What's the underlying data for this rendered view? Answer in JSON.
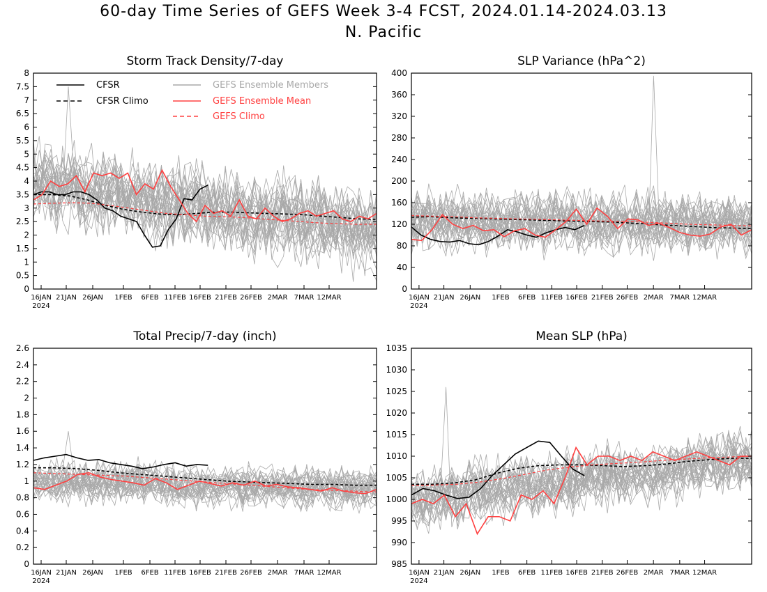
{
  "page": {
    "title": "60-day Time Series of GEFS Week 3-4 FCST, 2024.01.14-2024.03.13",
    "subtitle": "N. Pacific"
  },
  "colors": {
    "cfsr": "#000000",
    "members": "#a9a9a9",
    "ens_mean": "#ff4040",
    "gefs_climo": "#ff4040"
  },
  "legend": {
    "placement": "top-left",
    "entries": [
      "CFSR",
      "CFSR Climo",
      "GEFS Ensemble Members",
      "GEFS Ensemble Mean",
      "GEFS Climo"
    ]
  },
  "x_axis": {
    "ticks": [
      "16JAN",
      "21JAN",
      "26JAN",
      "1FEB",
      "6FEB",
      "11FEB",
      "16FEB",
      "21FEB",
      "26FEB",
      "2MAR",
      "7MAR",
      "12MAR"
    ],
    "year_label": "2024"
  },
  "chart_data": [
    {
      "type": "line",
      "title": "Storm Track Density/7-day",
      "ylim": [
        0,
        8
      ],
      "yticks": [
        "0",
        "0.5",
        "1",
        "1.5",
        "2",
        "2.5",
        "3",
        "3.5",
        "4",
        "4.5",
        "5",
        "5.5",
        "6",
        "6.5",
        "7",
        "7.5",
        "8"
      ],
      "legend": true,
      "members": {
        "center": [
          3.9,
          2.1
        ],
        "spread": 1.1,
        "peak": 7.5
      },
      "series": [
        {
          "role": "cfsr",
          "name": "CFSR",
          "values": [
            3.5,
            3.6,
            3.6,
            3.5,
            3.5,
            3.6,
            3.6,
            3.5,
            3.3,
            3.0,
            2.9,
            2.7,
            2.6,
            2.5,
            2.0,
            1.55,
            1.6,
            2.2,
            2.6,
            3.35,
            3.3,
            3.7,
            3.85
          ]
        },
        {
          "role": "cfsr_climo",
          "name": "CFSR Climo",
          "values": [
            3.5,
            3.5,
            3.45,
            3.3,
            3.1,
            2.95,
            2.85,
            2.78,
            2.75,
            2.8,
            2.85,
            2.85,
            2.82,
            2.8,
            2.78,
            2.75,
            2.7,
            2.65,
            2.6,
            2.58
          ]
        },
        {
          "role": "ens_mean",
          "name": "GEFS Ensemble Mean",
          "values": [
            3.3,
            3.5,
            4.0,
            3.8,
            3.9,
            4.2,
            3.6,
            4.3,
            4.2,
            4.3,
            4.1,
            4.3,
            3.5,
            3.9,
            3.7,
            4.4,
            3.8,
            3.3,
            2.8,
            2.5,
            3.1,
            2.8,
            2.9,
            2.7,
            3.3,
            2.7,
            2.6,
            3.0,
            2.7,
            2.5,
            2.6,
            2.8,
            2.9,
            2.7,
            2.8,
            2.9,
            2.6,
            2.5,
            2.7,
            2.6,
            2.8
          ]
        },
        {
          "role": "gefs_climo",
          "name": "GEFS Climo",
          "values": [
            3.15,
            3.18,
            3.2,
            3.18,
            3.1,
            3.0,
            2.9,
            2.8,
            2.75,
            2.7,
            2.68,
            2.65,
            2.6,
            2.55,
            2.5,
            2.45,
            2.42,
            2.4,
            2.4
          ]
        }
      ]
    },
    {
      "type": "line",
      "title": "SLP Variance (hPa^2)",
      "ylim": [
        0,
        400
      ],
      "yticks": [
        "0",
        "40",
        "80",
        "120",
        "160",
        "200",
        "240",
        "280",
        "320",
        "360",
        "400"
      ],
      "legend": false,
      "members": {
        "center": [
          125,
          120
        ],
        "spread": 40,
        "peak": 395
      },
      "series": [
        {
          "role": "cfsr",
          "name": "CFSR",
          "values": [
            115,
            100,
            92,
            88,
            87,
            90,
            84,
            82,
            88,
            98,
            110,
            106,
            100,
            96,
            104,
            110,
            114,
            110,
            118
          ]
        },
        {
          "role": "cfsr_climo",
          "name": "CFSR Climo",
          "values": [
            133,
            134,
            132,
            131,
            130,
            129,
            128,
            127,
            126,
            125,
            124,
            122,
            120,
            118,
            116,
            114,
            113,
            112
          ]
        },
        {
          "role": "ens_mean",
          "name": "GEFS Ensemble Mean",
          "values": [
            92,
            90,
            110,
            138,
            120,
            112,
            118,
            108,
            110,
            97,
            108,
            112,
            100,
            96,
            110,
            125,
            148,
            120,
            150,
            135,
            112,
            130,
            128,
            118,
            122,
            114,
            105,
            100,
            98,
            102,
            115,
            120,
            100,
            110
          ]
        },
        {
          "role": "gefs_climo",
          "name": "GEFS Climo",
          "values": [
            136,
            135,
            134,
            132,
            131,
            130,
            129,
            128,
            127,
            126,
            125,
            124,
            122,
            120,
            119,
            118,
            117
          ]
        }
      ]
    },
    {
      "type": "line",
      "title": "Total Precip/7-day (inch)",
      "ylim": [
        0,
        2.6
      ],
      "yticks": [
        "0",
        "0.2",
        "0.4",
        "0.6",
        "0.8",
        "1",
        "1.2",
        "1.4",
        "1.6",
        "1.8",
        "2",
        "2.2",
        "2.4",
        "2.6"
      ],
      "legend": false,
      "members": {
        "center": [
          1.0,
          0.9
        ],
        "spread": 0.18,
        "peak": 1.6
      },
      "series": [
        {
          "role": "cfsr",
          "name": "CFSR",
          "values": [
            1.25,
            1.28,
            1.3,
            1.32,
            1.28,
            1.25,
            1.26,
            1.22,
            1.2,
            1.18,
            1.15,
            1.17,
            1.2,
            1.22,
            1.18,
            1.2,
            1.19
          ]
        },
        {
          "role": "cfsr_climo",
          "name": "CFSR Climo",
          "values": [
            1.16,
            1.16,
            1.15,
            1.13,
            1.1,
            1.08,
            1.06,
            1.04,
            1.02,
            1.0,
            0.99,
            0.98,
            0.97,
            0.96,
            0.96,
            0.95,
            0.95
          ]
        },
        {
          "role": "ens_mean",
          "name": "GEFS Ensemble Mean",
          "values": [
            0.92,
            0.9,
            0.95,
            1.0,
            1.08,
            1.1,
            1.05,
            1.02,
            1.0,
            0.98,
            0.95,
            1.03,
            0.98,
            0.9,
            0.95,
            1.0,
            0.97,
            0.94,
            0.98,
            0.95,
            1.0,
            0.94,
            0.96,
            0.93,
            0.92,
            0.9,
            0.88,
            0.92,
            0.88,
            0.86,
            0.85,
            0.9
          ]
        },
        {
          "role": "gefs_climo",
          "name": "GEFS Climo",
          "values": [
            1.1,
            1.09,
            1.08,
            1.07,
            1.06,
            1.04,
            1.02,
            1.0,
            0.98,
            0.96,
            0.94,
            0.92,
            0.9,
            0.89,
            0.88,
            0.87
          ]
        }
      ]
    },
    {
      "type": "line",
      "title": "Mean SLP (hPa)",
      "ylim": [
        985,
        1035
      ],
      "yticks": [
        "985",
        "990",
        "995",
        "1000",
        "1005",
        "1010",
        "1015",
        "1020",
        "1025",
        "1030",
        "1035"
      ],
      "legend": false,
      "members": {
        "center": [
          1000,
          1009
        ],
        "spread": 5,
        "peak": 1026
      },
      "series": [
        {
          "role": "cfsr",
          "name": "CFSR",
          "values": [
            1001,
            1002.5,
            1002,
            1001,
            1000.2,
            1000.5,
            1002.5,
            1005.5,
            1008,
            1010.5,
            1012,
            1013.5,
            1013.2,
            1010,
            1007,
            1005.5
          ]
        },
        {
          "role": "cfsr_climo",
          "name": "CFSR Climo",
          "values": [
            1003.5,
            1003.5,
            1003.8,
            1004.5,
            1006,
            1007.2,
            1007.8,
            1008,
            1008,
            1007.8,
            1007.6,
            1007.8,
            1008.2,
            1008.8,
            1009.2,
            1009.5,
            1009.5
          ]
        },
        {
          "role": "ens_mean",
          "name": "GEFS Ensemble Mean",
          "values": [
            999,
            1000,
            999,
            1001,
            996,
            999,
            992,
            996,
            996,
            995,
            1001,
            1000,
            1002,
            999,
            1005,
            1012,
            1008,
            1010,
            1010,
            1009,
            1010,
            1009,
            1011,
            1010,
            1009,
            1010,
            1011,
            1010,
            1009,
            1008,
            1010,
            1010
          ]
        },
        {
          "role": "gefs_climo",
          "name": "GEFS Climo",
          "values": [
            1003.2,
            1003.3,
            1003.5,
            1004,
            1004.8,
            1005.8,
            1006.8,
            1007.5,
            1008,
            1008.3,
            1008.6,
            1009,
            1009.3,
            1009.6,
            1009.8,
            1010
          ]
        }
      ]
    }
  ]
}
